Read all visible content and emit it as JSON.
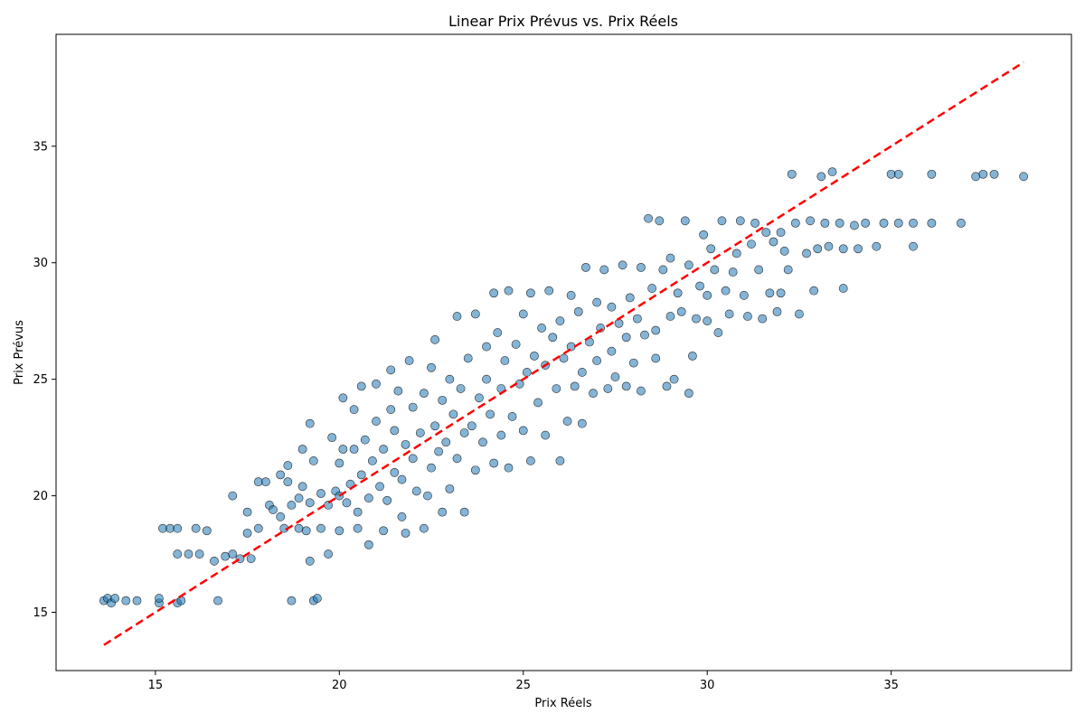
{
  "chart_data": {
    "type": "scatter",
    "title": "Linear Prix Prévus vs. Prix Réels",
    "xlabel": "Prix Réels",
    "ylabel": "Prix Prévus",
    "xlim": [
      12.3,
      39.9
    ],
    "ylim": [
      12.5,
      39.8
    ],
    "xticks": [
      15,
      20,
      25,
      30,
      35
    ],
    "yticks": [
      15,
      20,
      25,
      30,
      35
    ],
    "grid": false,
    "colors": {
      "point_fill": "#1f77b4",
      "point_edge": "#000000",
      "reference_line": "#ff0000"
    },
    "reference_line": {
      "x": [
        13.6,
        38.6
      ],
      "y": [
        13.6,
        38.6
      ]
    },
    "series": [
      {
        "points": [
          [
            13.6,
            15.5
          ],
          [
            13.7,
            15.6
          ],
          [
            13.8,
            15.4
          ],
          [
            13.9,
            15.6
          ],
          [
            14.2,
            15.5
          ],
          [
            14.5,
            15.5
          ],
          [
            15.1,
            15.4
          ],
          [
            15.1,
            15.6
          ],
          [
            15.6,
            15.4
          ],
          [
            15.7,
            15.5
          ],
          [
            15.2,
            18.6
          ],
          [
            15.4,
            18.6
          ],
          [
            15.6,
            18.6
          ],
          [
            16.1,
            18.6
          ],
          [
            16.4,
            18.5
          ],
          [
            15.6,
            17.5
          ],
          [
            15.9,
            17.5
          ],
          [
            16.2,
            17.5
          ],
          [
            16.6,
            17.2
          ],
          [
            16.9,
            17.4
          ],
          [
            17.1,
            17.5
          ],
          [
            17.3,
            17.3
          ],
          [
            17.6,
            17.3
          ],
          [
            16.7,
            15.5
          ],
          [
            17.1,
            20.0
          ],
          [
            17.5,
            19.3
          ],
          [
            17.5,
            18.4
          ],
          [
            17.8,
            18.6
          ],
          [
            17.8,
            20.6
          ],
          [
            18.0,
            20.6
          ],
          [
            18.1,
            19.6
          ],
          [
            18.2,
            19.4
          ],
          [
            18.4,
            19.1
          ],
          [
            18.4,
            20.9
          ],
          [
            18.6,
            20.6
          ],
          [
            18.6,
            21.3
          ],
          [
            18.5,
            18.6
          ],
          [
            18.7,
            19.6
          ],
          [
            18.7,
            15.5
          ],
          [
            18.9,
            18.6
          ],
          [
            18.9,
            19.9
          ],
          [
            19.0,
            20.4
          ],
          [
            19.0,
            22.0
          ],
          [
            19.1,
            18.5
          ],
          [
            19.2,
            17.2
          ],
          [
            19.2,
            19.7
          ],
          [
            19.2,
            23.1
          ],
          [
            19.3,
            21.5
          ],
          [
            19.3,
            15.5
          ],
          [
            19.4,
            15.6
          ],
          [
            19.5,
            20.1
          ],
          [
            19.5,
            18.6
          ],
          [
            19.7,
            17.5
          ],
          [
            19.7,
            19.6
          ],
          [
            19.8,
            22.5
          ],
          [
            19.9,
            20.2
          ],
          [
            20.0,
            18.5
          ],
          [
            20.0,
            20.0
          ],
          [
            20.0,
            21.4
          ],
          [
            20.1,
            24.2
          ],
          [
            20.1,
            22.0
          ],
          [
            20.2,
            19.7
          ],
          [
            20.3,
            20.5
          ],
          [
            20.4,
            22.0
          ],
          [
            20.4,
            23.7
          ],
          [
            20.5,
            18.6
          ],
          [
            20.5,
            19.3
          ],
          [
            20.6,
            20.9
          ],
          [
            20.6,
            24.7
          ],
          [
            20.7,
            22.4
          ],
          [
            20.8,
            17.9
          ],
          [
            20.8,
            19.9
          ],
          [
            20.9,
            21.5
          ],
          [
            21.0,
            23.2
          ],
          [
            21.0,
            24.8
          ],
          [
            21.1,
            20.4
          ],
          [
            21.2,
            18.5
          ],
          [
            21.2,
            22.0
          ],
          [
            21.3,
            19.8
          ],
          [
            21.4,
            23.7
          ],
          [
            21.4,
            25.4
          ],
          [
            21.5,
            21.0
          ],
          [
            21.5,
            22.8
          ],
          [
            21.6,
            24.5
          ],
          [
            21.7,
            19.1
          ],
          [
            21.7,
            20.7
          ],
          [
            21.8,
            18.4
          ],
          [
            21.8,
            22.2
          ],
          [
            21.9,
            25.8
          ],
          [
            22.0,
            21.6
          ],
          [
            22.0,
            23.8
          ],
          [
            22.1,
            20.2
          ],
          [
            22.2,
            22.7
          ],
          [
            22.3,
            24.4
          ],
          [
            22.3,
            18.6
          ],
          [
            22.4,
            20.0
          ],
          [
            22.5,
            21.2
          ],
          [
            22.5,
            25.5
          ],
          [
            22.6,
            23.0
          ],
          [
            22.6,
            26.7
          ],
          [
            22.7,
            21.9
          ],
          [
            22.8,
            24.1
          ],
          [
            22.8,
            19.3
          ],
          [
            22.9,
            22.3
          ],
          [
            23.0,
            25.0
          ],
          [
            23.0,
            20.3
          ],
          [
            23.1,
            23.5
          ],
          [
            23.2,
            27.7
          ],
          [
            23.2,
            21.6
          ],
          [
            23.3,
            24.6
          ],
          [
            23.4,
            22.7
          ],
          [
            23.4,
            19.3
          ],
          [
            23.5,
            25.9
          ],
          [
            23.6,
            23.0
          ],
          [
            23.7,
            21.1
          ],
          [
            23.7,
            27.8
          ],
          [
            23.8,
            24.2
          ],
          [
            23.9,
            22.3
          ],
          [
            24.0,
            26.4
          ],
          [
            24.0,
            25.0
          ],
          [
            24.1,
            23.5
          ],
          [
            24.2,
            28.7
          ],
          [
            24.2,
            21.4
          ],
          [
            24.3,
            27.0
          ],
          [
            24.4,
            24.6
          ],
          [
            24.4,
            22.6
          ],
          [
            24.5,
            25.8
          ],
          [
            24.6,
            28.8
          ],
          [
            24.6,
            21.2
          ],
          [
            24.7,
            23.4
          ],
          [
            24.8,
            26.5
          ],
          [
            24.9,
            24.8
          ],
          [
            25.0,
            27.8
          ],
          [
            25.0,
            22.8
          ],
          [
            25.1,
            25.3
          ],
          [
            25.2,
            21.5
          ],
          [
            25.2,
            28.7
          ],
          [
            25.3,
            26.0
          ],
          [
            25.4,
            24.0
          ],
          [
            25.5,
            27.2
          ],
          [
            25.6,
            22.6
          ],
          [
            25.6,
            25.6
          ],
          [
            25.7,
            28.8
          ],
          [
            25.8,
            26.8
          ],
          [
            25.9,
            24.6
          ],
          [
            26.0,
            21.5
          ],
          [
            26.0,
            27.5
          ],
          [
            26.1,
            25.9
          ],
          [
            26.2,
            23.2
          ],
          [
            26.3,
            28.6
          ],
          [
            26.3,
            26.4
          ],
          [
            26.4,
            24.7
          ],
          [
            26.5,
            27.9
          ],
          [
            26.6,
            25.3
          ],
          [
            26.6,
            23.1
          ],
          [
            26.7,
            29.8
          ],
          [
            26.8,
            26.6
          ],
          [
            26.9,
            24.4
          ],
          [
            27.0,
            28.3
          ],
          [
            27.0,
            25.8
          ],
          [
            27.1,
            27.2
          ],
          [
            27.2,
            29.7
          ],
          [
            27.3,
            24.6
          ],
          [
            27.4,
            26.2
          ],
          [
            27.4,
            28.1
          ],
          [
            27.5,
            25.1
          ],
          [
            27.6,
            27.4
          ],
          [
            27.7,
            29.9
          ],
          [
            27.8,
            24.7
          ],
          [
            27.8,
            26.8
          ],
          [
            27.9,
            28.5
          ],
          [
            28.0,
            25.7
          ],
          [
            28.1,
            27.6
          ],
          [
            28.2,
            29.8
          ],
          [
            28.2,
            24.5
          ],
          [
            28.3,
            26.9
          ],
          [
            28.4,
            31.9
          ],
          [
            28.5,
            28.9
          ],
          [
            28.6,
            25.9
          ],
          [
            28.6,
            27.1
          ],
          [
            28.7,
            31.8
          ],
          [
            28.8,
            29.7
          ],
          [
            28.9,
            24.7
          ],
          [
            29.0,
            27.7
          ],
          [
            29.0,
            30.2
          ],
          [
            29.1,
            25.0
          ],
          [
            29.2,
            28.7
          ],
          [
            29.3,
            27.9
          ],
          [
            29.4,
            31.8
          ],
          [
            29.5,
            29.9
          ],
          [
            29.5,
            24.4
          ],
          [
            29.6,
            26.0
          ],
          [
            29.7,
            27.6
          ],
          [
            29.8,
            29.0
          ],
          [
            29.9,
            31.2
          ],
          [
            30.0,
            27.5
          ],
          [
            30.0,
            28.6
          ],
          [
            30.1,
            30.6
          ],
          [
            30.2,
            29.7
          ],
          [
            30.3,
            27.0
          ],
          [
            30.4,
            31.8
          ],
          [
            30.5,
            28.8
          ],
          [
            30.6,
            27.8
          ],
          [
            30.7,
            29.6
          ],
          [
            30.8,
            30.4
          ],
          [
            30.9,
            31.8
          ],
          [
            31.0,
            28.6
          ],
          [
            31.1,
            27.7
          ],
          [
            31.2,
            30.8
          ],
          [
            31.3,
            31.7
          ],
          [
            31.4,
            29.7
          ],
          [
            31.5,
            27.6
          ],
          [
            31.6,
            31.3
          ],
          [
            31.7,
            28.7
          ],
          [
            31.8,
            30.9
          ],
          [
            31.9,
            27.9
          ],
          [
            32.0,
            31.3
          ],
          [
            32.0,
            28.7
          ],
          [
            32.1,
            30.5
          ],
          [
            32.2,
            29.7
          ],
          [
            32.3,
            33.8
          ],
          [
            32.4,
            31.7
          ],
          [
            32.5,
            27.8
          ],
          [
            32.7,
            30.4
          ],
          [
            32.8,
            31.8
          ],
          [
            32.9,
            28.8
          ],
          [
            33.0,
            30.6
          ],
          [
            33.1,
            33.7
          ],
          [
            33.2,
            31.7
          ],
          [
            33.3,
            30.7
          ],
          [
            33.4,
            33.9
          ],
          [
            33.6,
            31.7
          ],
          [
            33.7,
            30.6
          ],
          [
            33.7,
            28.9
          ],
          [
            34.0,
            31.6
          ],
          [
            34.1,
            30.6
          ],
          [
            34.3,
            31.7
          ],
          [
            34.6,
            30.7
          ],
          [
            34.8,
            31.7
          ],
          [
            35.0,
            33.8
          ],
          [
            35.2,
            31.7
          ],
          [
            35.2,
            33.8
          ],
          [
            35.6,
            31.7
          ],
          [
            35.6,
            30.7
          ],
          [
            36.1,
            31.7
          ],
          [
            36.1,
            33.8
          ],
          [
            36.9,
            31.7
          ],
          [
            37.3,
            33.7
          ],
          [
            37.5,
            33.8
          ],
          [
            37.8,
            33.8
          ],
          [
            38.6,
            33.7
          ]
        ]
      }
    ]
  }
}
